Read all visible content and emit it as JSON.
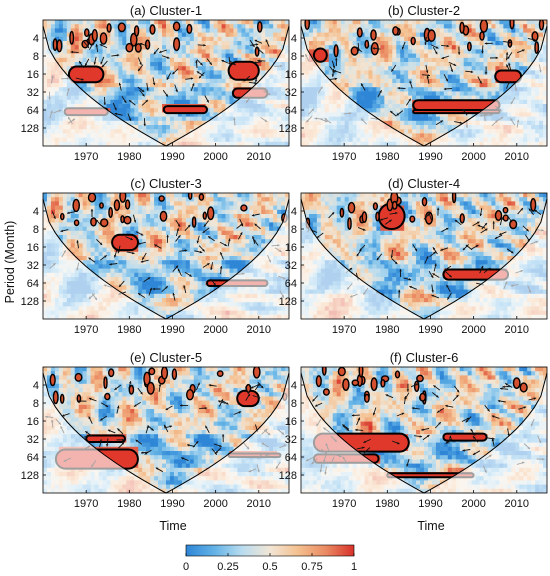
{
  "figure": {
    "ylabel": "Period (Month)",
    "xlabel": "Time"
  },
  "colorbar": {
    "ticks": [
      "0",
      "0.25",
      "0.5",
      "0.75",
      "1"
    ],
    "stops": [
      "#2f86d6",
      "#62b2e6",
      "#b9dcef",
      "#f2e6d6",
      "#f4c08f",
      "#ea8a62",
      "#d8312a"
    ]
  },
  "chart_data": [
    {
      "type": "heatmap",
      "title": "(a) Cluster-1",
      "x_ticks": [
        "1970",
        "1980",
        "1990",
        "2000",
        "2010"
      ],
      "y_ticks": [
        "4",
        "8",
        "16",
        "32",
        "64",
        "128"
      ],
      "xlim": [
        1960,
        2017
      ],
      "ylim": [
        2,
        256
      ],
      "y_scale": "log2",
      "coherence_range": [
        0,
        1
      ],
      "significant_regions": [
        {
          "x": [
            1966,
            1974
          ],
          "period": [
            12,
            22
          ]
        },
        {
          "x": [
            1965,
            1975
          ],
          "period": [
            60,
            78
          ]
        },
        {
          "x": [
            1988,
            1998
          ],
          "period": [
            55,
            72
          ]
        },
        {
          "x": [
            2003,
            2010
          ],
          "period": [
            10,
            20
          ]
        },
        {
          "x": [
            2004,
            2012
          ],
          "period": [
            28,
            40
          ]
        }
      ]
    },
    {
      "type": "heatmap",
      "title": "(b) Cluster-2",
      "x_ticks": [
        "1970",
        "1980",
        "1990",
        "2000",
        "2010"
      ],
      "y_ticks": [
        "4",
        "8",
        "16",
        "32",
        "64",
        "128"
      ],
      "xlim": [
        1960,
        2017
      ],
      "ylim": [
        2,
        256
      ],
      "y_scale": "log2",
      "coherence_range": [
        0,
        1
      ],
      "significant_regions": [
        {
          "x": [
            1963,
            1966
          ],
          "period": [
            6,
            10
          ]
        },
        {
          "x": [
            1986,
            2006
          ],
          "period": [
            44,
            64
          ]
        },
        {
          "x": [
            1986,
            2006
          ],
          "period": [
            64,
            72
          ]
        },
        {
          "x": [
            2005,
            2011
          ],
          "period": [
            14,
            22
          ]
        }
      ]
    },
    {
      "type": "heatmap",
      "title": "(c) Cluster-3",
      "x_ticks": [
        "1970",
        "1980",
        "1990",
        "2000",
        "2010"
      ],
      "y_ticks": [
        "4",
        "8",
        "16",
        "32",
        "64",
        "128"
      ],
      "xlim": [
        1960,
        2017
      ],
      "ylim": [
        2,
        256
      ],
      "y_scale": "log2",
      "coherence_range": [
        0,
        1
      ],
      "significant_regions": [
        {
          "x": [
            1976,
            1982
          ],
          "period": [
            10,
            18
          ]
        },
        {
          "x": [
            1998,
            2012
          ],
          "period": [
            58,
            72
          ]
        }
      ]
    },
    {
      "type": "heatmap",
      "title": "(d) Cluster-4",
      "x_ticks": [
        "1970",
        "1980",
        "1990",
        "2000",
        "2010"
      ],
      "y_ticks": [
        "4",
        "8",
        "16",
        "32",
        "64",
        "128"
      ],
      "xlim": [
        1960,
        2017
      ],
      "ylim": [
        2,
        256
      ],
      "y_scale": "log2",
      "coherence_range": [
        0,
        1
      ],
      "significant_regions": [
        {
          "x": [
            1978,
            1984
          ],
          "period": [
            3,
            8
          ]
        },
        {
          "x": [
            1993,
            2008
          ],
          "period": [
            38,
            56
          ]
        }
      ]
    },
    {
      "type": "heatmap",
      "title": "(e) Cluster-5",
      "x_ticks": [
        "1970",
        "1980",
        "1990",
        "2000",
        "2010"
      ],
      "y_ticks": [
        "4",
        "8",
        "16",
        "32",
        "64",
        "128"
      ],
      "xlim": [
        1960,
        2017
      ],
      "ylim": [
        2,
        256
      ],
      "y_scale": "log2",
      "coherence_range": [
        0,
        1
      ],
      "significant_regions": [
        {
          "x": [
            1963,
            1982
          ],
          "period": [
            48,
            100
          ]
        },
        {
          "x": [
            1970,
            1979
          ],
          "period": [
            28,
            36
          ]
        },
        {
          "x": [
            2003,
            2015
          ],
          "period": [
            56,
            64
          ]
        },
        {
          "x": [
            2005,
            2010
          ],
          "period": [
            5,
            9
          ]
        }
      ]
    },
    {
      "type": "heatmap",
      "title": "(f) Cluster-6",
      "x_ticks": [
        "1970",
        "1980",
        "1990",
        "2000",
        "2010"
      ],
      "y_ticks": [
        "4",
        "8",
        "16",
        "32",
        "64",
        "128"
      ],
      "xlim": [
        1960,
        2017
      ],
      "ylim": [
        2,
        256
      ],
      "y_scale": "log2",
      "coherence_range": [
        0,
        1
      ],
      "significant_regions": [
        {
          "x": [
            1963,
            1985
          ],
          "period": [
            26,
            52
          ]
        },
        {
          "x": [
            1963,
            1978
          ],
          "period": [
            58,
            80
          ]
        },
        {
          "x": [
            1993,
            2003
          ],
          "period": [
            26,
            34
          ]
        },
        {
          "x": [
            1980,
            2000
          ],
          "period": [
            120,
            140
          ]
        }
      ]
    }
  ]
}
